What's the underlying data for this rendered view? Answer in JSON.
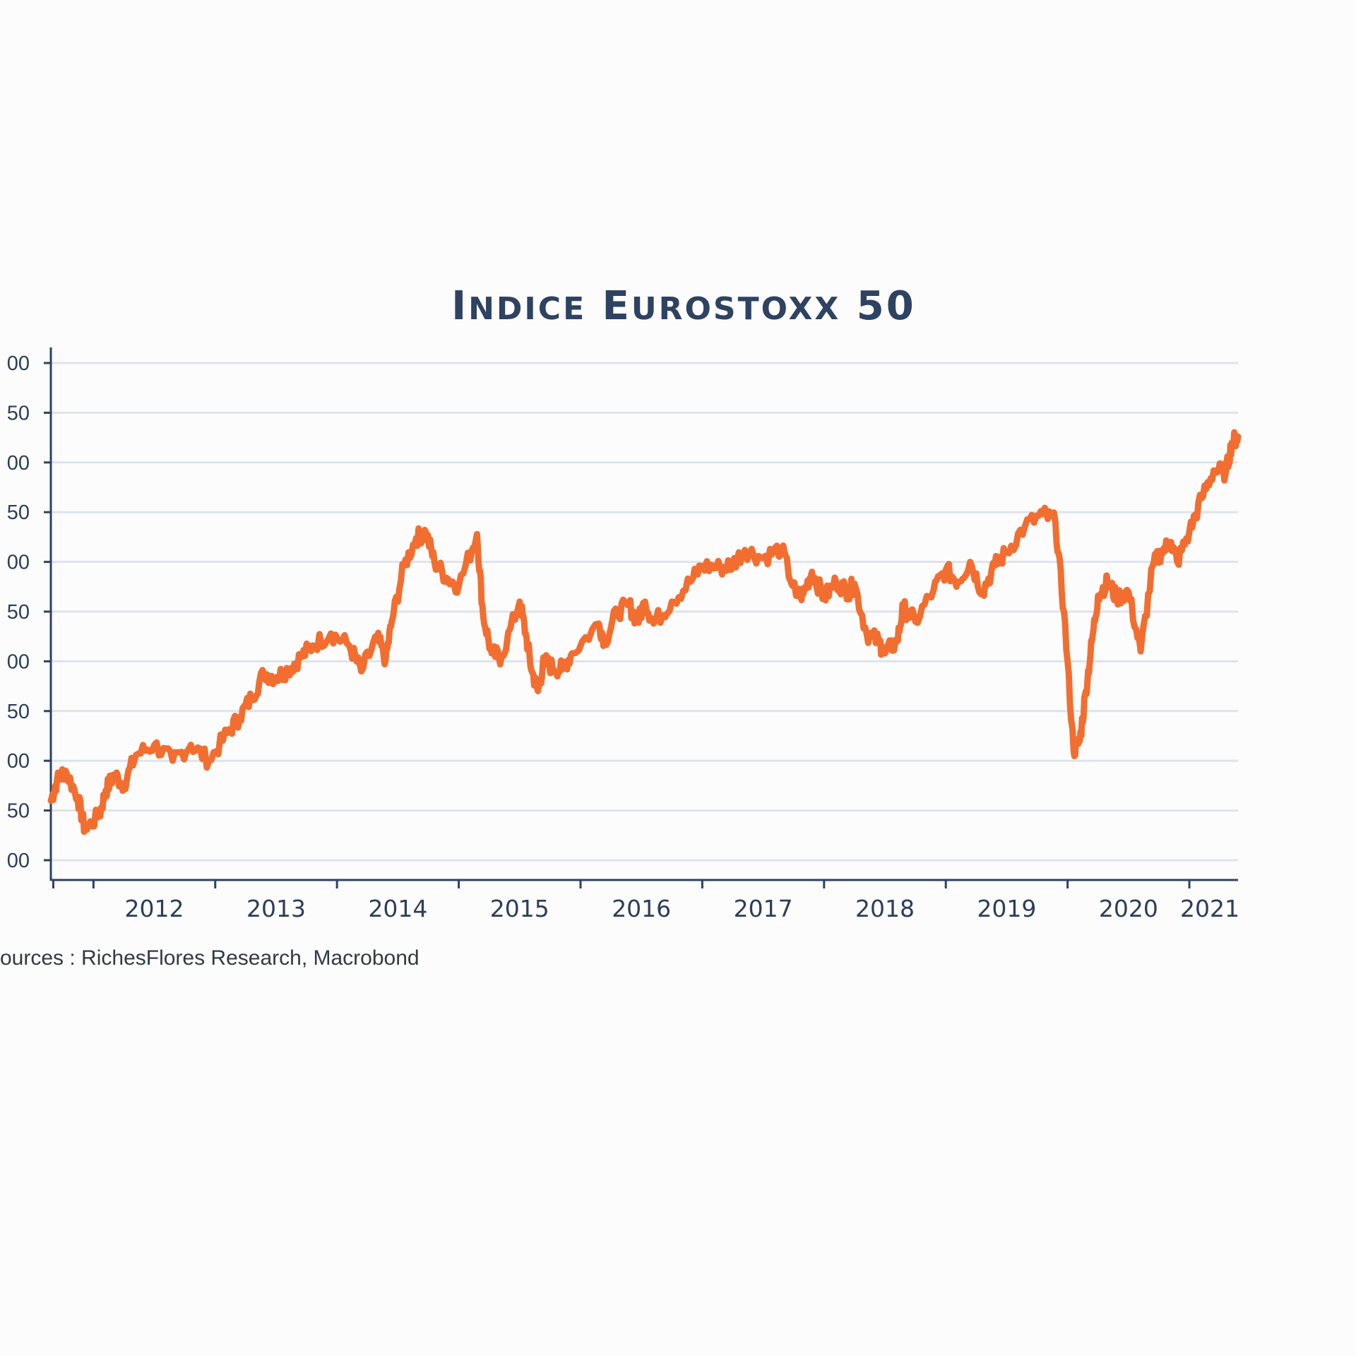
{
  "chart_data": {
    "type": "line",
    "title": "INDICE EUROSTOXX 50",
    "source": "ources : RichesFlores Research, Macrobond",
    "y_tick_labels": [
      "00",
      "50",
      "00",
      "50",
      "00",
      "50",
      "00",
      "50",
      "00",
      "50",
      "00"
    ],
    "x_tick_labels": [
      "2012",
      "2013",
      "2014",
      "2015",
      "2016",
      "2017",
      "2018",
      "2019",
      "2020",
      "2021"
    ],
    "ylim": [
      2000,
      4500
    ],
    "xlim": [
      2011.6,
      2021.35
    ],
    "grid": true,
    "colors": {
      "series": "#f26e30",
      "axis": "#2e4262",
      "grid": "#dfe3ea"
    },
    "series": [
      {
        "x": [
          2011.6,
          2011.65,
          2011.72,
          2011.82,
          2011.88,
          2012.0,
          2012.05,
          2012.12,
          2012.2,
          2012.3,
          2012.45,
          2012.6,
          2012.75,
          2012.9,
          2013.05,
          2013.15,
          2013.25,
          2013.35,
          2013.45,
          2013.55,
          2013.65,
          2013.75,
          2013.9,
          2014.05,
          2014.15,
          2014.28,
          2014.35,
          2014.4,
          2014.5,
          2014.6,
          2014.68,
          2014.75,
          2014.85,
          2014.95,
          2015.1,
          2015.15,
          2015.22,
          2015.3,
          2015.45,
          2015.5,
          2015.55,
          2015.6,
          2015.65,
          2015.72,
          2015.8,
          2015.88,
          2016.1,
          2016.15,
          2016.25,
          2016.35,
          2016.42,
          2016.48,
          2016.55,
          2016.7,
          2016.85,
          2016.95,
          2017.1,
          2017.2,
          2017.3,
          2017.45,
          2017.6,
          2017.72,
          2017.78,
          2017.85,
          2017.95,
          2018.05,
          2018.15,
          2018.2,
          2018.3,
          2018.4,
          2018.45,
          2018.55,
          2018.6,
          2018.7,
          2018.85,
          2018.95,
          2019.05,
          2019.15,
          2019.25,
          2019.35,
          2019.45,
          2019.6,
          2019.75,
          2019.85,
          2019.92,
          2020.0,
          2020.05,
          2020.1,
          2020.15,
          2020.2,
          2020.28,
          2020.35,
          2020.45,
          2020.55,
          2020.65,
          2020.72,
          2020.8,
          2020.85,
          2020.95,
          2021.05,
          2021.15,
          2021.25,
          2021.3,
          2021.35
        ],
        "y": [
          2300,
          2400,
          2450,
          2320,
          2150,
          2230,
          2350,
          2430,
          2380,
          2530,
          2580,
          2500,
          2580,
          2500,
          2640,
          2720,
          2820,
          2940,
          2920,
          2960,
          3020,
          3080,
          3140,
          3080,
          2950,
          3120,
          3010,
          3200,
          3480,
          3620,
          3650,
          3500,
          3420,
          3380,
          3640,
          3230,
          3040,
          3020,
          3300,
          3140,
          2950,
          2850,
          3000,
          2970,
          2960,
          3040,
          3190,
          3100,
          3250,
          3280,
          3200,
          3300,
          3190,
          3300,
          3400,
          3480,
          3470,
          3490,
          3560,
          3520,
          3570,
          3330,
          3340,
          3450,
          3320,
          3400,
          3350,
          3390,
          3140,
          3100,
          3040,
          3100,
          3270,
          3200,
          3360,
          3460,
          3400,
          3500,
          3350,
          3480,
          3550,
          3680,
          3740,
          3700,
          3250,
          2550,
          2600,
          2850,
          3100,
          3330,
          3400,
          3320,
          3350,
          3050,
          3480,
          3550,
          3600,
          3500,
          3650,
          3820,
          3960,
          3950,
          4100,
          4130
        ]
      }
    ]
  }
}
